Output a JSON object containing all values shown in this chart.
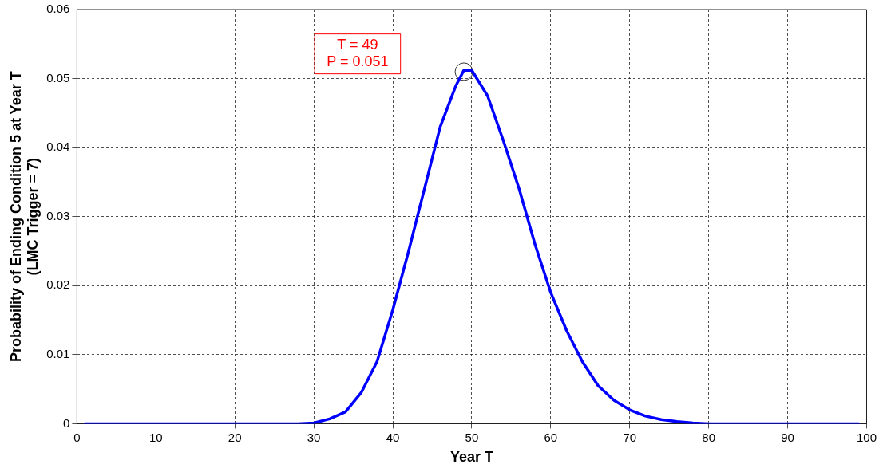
{
  "chart_data": {
    "type": "line",
    "xlabel": "Year T",
    "ylabel": "Probability of Ending Condition 5 at Year T\n(LMC Trigger = 7)",
    "xlim": [
      0,
      100
    ],
    "xticks": [
      0,
      10,
      20,
      30,
      40,
      50,
      60,
      70,
      80,
      90,
      100
    ],
    "ylim": [
      0,
      0.06
    ],
    "yticks": [
      0,
      0.01,
      0.02,
      0.03,
      0.04,
      0.05,
      0.06
    ],
    "grid": true,
    "marker": "none",
    "line_style": "solid",
    "series": [
      {
        "color": "#0000ff",
        "x": [
          1,
          10,
          20,
          28,
          30,
          32,
          34,
          36,
          38,
          40,
          42,
          44,
          46,
          48,
          49,
          50,
          52,
          54,
          56,
          58,
          60,
          62,
          64,
          66,
          68,
          70,
          72,
          74,
          76,
          78,
          80,
          90,
          99
        ],
        "values": [
          0,
          0,
          0,
          0,
          0.0001,
          0.0007,
          0.0017,
          0.0045,
          0.009,
          0.0165,
          0.025,
          0.034,
          0.043,
          0.049,
          0.0512,
          0.0512,
          0.0475,
          0.041,
          0.034,
          0.026,
          0.019,
          0.0135,
          0.009,
          0.0055,
          0.0034,
          0.002,
          0.0011,
          0.0006,
          0.0003,
          0.0001,
          0,
          0,
          0
        ]
      },
      {
        "type": "scatter",
        "color": "#333333",
        "marker": "circle",
        "x": [
          49
        ],
        "values": [
          0.051
        ]
      }
    ],
    "annotations": [
      "T = 49\nP = 0.051"
    ]
  }
}
